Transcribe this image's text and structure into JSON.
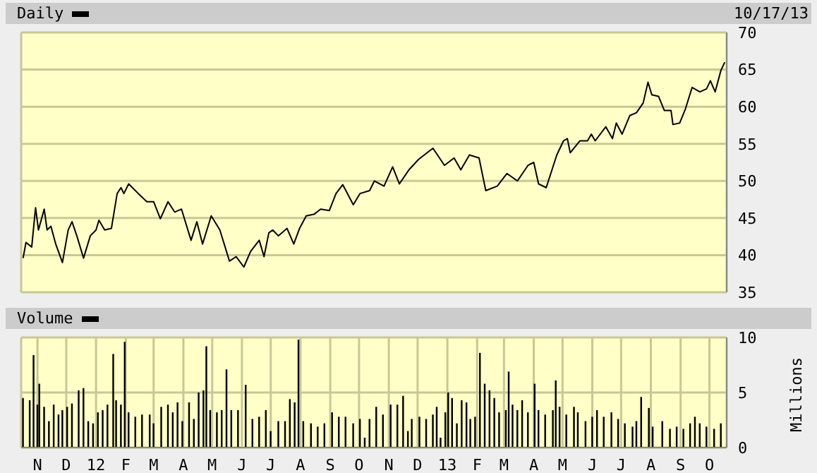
{
  "chart_data": [
    {
      "type": "line",
      "subtitle": "10/17/13",
      "legend": "top left",
      "grid": true,
      "tick_labels": "y",
      "xlim": [
        "2011-10-15",
        "2013-10-19"
      ],
      "xticks": [
        {
          "value": "2011-11-01",
          "label": null
        },
        {
          "value": "2011-12-01",
          "label": null
        },
        {
          "value": "2012-01-01",
          "label": null
        },
        {
          "value": "2012-02-01",
          "label": null
        },
        {
          "value": "2012-03-01",
          "label": null
        },
        {
          "value": "2012-04-01",
          "label": null
        },
        {
          "value": "2012-05-01",
          "label": null
        },
        {
          "value": "2012-06-01",
          "label": null
        },
        {
          "value": "2012-07-01",
          "label": null
        },
        {
          "value": "2012-08-01",
          "label": null
        },
        {
          "value": "2012-09-01",
          "label": null
        },
        {
          "value": "2012-10-01",
          "label": null
        },
        {
          "value": "2012-11-01",
          "label": null
        },
        {
          "value": "2012-12-01",
          "label": null
        },
        {
          "value": "2013-01-01",
          "label": null
        },
        {
          "value": "2013-02-01",
          "label": null
        },
        {
          "value": "2013-03-01",
          "label": null
        },
        {
          "value": "2013-04-01",
          "label": null
        },
        {
          "value": "2013-05-01",
          "label": null
        },
        {
          "value": "2013-06-01",
          "label": null
        },
        {
          "value": "2013-07-01",
          "label": null
        },
        {
          "value": "2013-08-01",
          "label": null
        },
        {
          "value": "2013-09-01",
          "label": null
        },
        {
          "value": "2013-10-01",
          "label": null
        }
      ],
      "ylim": [
        35,
        70
      ],
      "yticks": [
        35,
        40,
        45,
        50,
        55,
        60,
        65,
        70
      ],
      "x": [
        "2011-10-17",
        "2011-10-20",
        "2011-10-26",
        "2011-10-30",
        "2011-11-02",
        "2011-11-08",
        "2011-11-11",
        "2011-11-15",
        "2011-11-20",
        "2011-11-27",
        "2011-12-03",
        "2011-12-07",
        "2011-12-12",
        "2011-12-19",
        "2011-12-26",
        "2012-01-01",
        "2012-01-04",
        "2012-01-10",
        "2012-01-17",
        "2012-01-23",
        "2012-01-27",
        "2012-01-30",
        "2012-02-04",
        "2012-02-14",
        "2012-02-23",
        "2012-03-01",
        "2012-03-08",
        "2012-03-16",
        "2012-03-23",
        "2012-03-30",
        "2012-04-09",
        "2012-04-15",
        "2012-04-21",
        "2012-04-30",
        "2012-05-09",
        "2012-05-19",
        "2012-05-26",
        "2012-06-03",
        "2012-06-10",
        "2012-06-19",
        "2012-06-24",
        "2012-06-29",
        "2012-07-03",
        "2012-07-09",
        "2012-07-18",
        "2012-07-25",
        "2012-07-31",
        "2012-08-07",
        "2012-08-15",
        "2012-08-22",
        "2012-08-31",
        "2012-09-07",
        "2012-09-14",
        "2012-09-25",
        "2012-10-02",
        "2012-10-12",
        "2012-10-17",
        "2012-10-27",
        "2012-11-05",
        "2012-11-12",
        "2012-11-22",
        "2012-12-02",
        "2012-12-11",
        "2012-12-17",
        "2012-12-29",
        "2013-01-08",
        "2013-01-15",
        "2013-01-24",
        "2013-02-03",
        "2013-02-10",
        "2013-02-22",
        "2013-03-04",
        "2013-03-15",
        "2013-03-26",
        "2013-04-01",
        "2013-04-06",
        "2013-04-14",
        "2013-04-25",
        "2013-05-02",
        "2013-05-06",
        "2013-05-09",
        "2013-05-19",
        "2013-05-27",
        "2013-05-31",
        "2013-06-04",
        "2013-06-15",
        "2013-06-22",
        "2013-06-26",
        "2013-07-02",
        "2013-07-10",
        "2013-07-17",
        "2013-07-24",
        "2013-07-29",
        "2013-08-02",
        "2013-08-09",
        "2013-08-15",
        "2013-08-22",
        "2013-08-24",
        "2013-08-31",
        "2013-09-06",
        "2013-09-13",
        "2013-09-21",
        "2013-09-28",
        "2013-10-02",
        "2013-10-07",
        "2013-10-13",
        "2013-10-17"
      ],
      "series": [
        {
          "name": "Daily",
          "color": "#000000",
          "values": [
            39.6,
            41.7,
            41.1,
            46.4,
            43.4,
            46.2,
            43.4,
            43.9,
            41.5,
            39.0,
            43.4,
            44.5,
            42.6,
            39.6,
            42.6,
            43.4,
            44.7,
            43.4,
            43.6,
            48.3,
            49.1,
            48.3,
            49.6,
            48.3,
            47.2,
            47.2,
            44.9,
            47.2,
            45.8,
            46.2,
            42.0,
            44.5,
            41.5,
            45.3,
            43.4,
            39.2,
            39.8,
            38.4,
            40.5,
            42.0,
            39.8,
            43.0,
            43.4,
            42.6,
            43.6,
            41.5,
            43.6,
            45.3,
            45.5,
            46.2,
            46.0,
            48.3,
            49.5,
            46.8,
            48.3,
            48.7,
            50.0,
            49.3,
            51.9,
            49.6,
            51.5,
            52.9,
            53.8,
            54.4,
            52.1,
            53.1,
            51.5,
            53.5,
            53.1,
            48.7,
            49.3,
            51.0,
            50.0,
            52.1,
            52.5,
            49.6,
            49.1,
            53.5,
            55.4,
            55.7,
            53.8,
            55.4,
            55.4,
            56.3,
            55.4,
            57.3,
            55.7,
            57.8,
            56.3,
            58.8,
            59.2,
            60.5,
            63.3,
            61.6,
            61.4,
            59.5,
            59.5,
            57.6,
            57.8,
            59.7,
            62.6,
            62.0,
            62.4,
            63.5,
            62.0,
            64.9,
            66.0
          ]
        }
      ]
    },
    {
      "type": "bar",
      "ylabel": "Millions",
      "legend": "top left",
      "grid": true,
      "xlim": [
        "2011-10-15",
        "2013-10-19"
      ],
      "xticks": [
        {
          "value": "2011-11-01",
          "label": "N"
        },
        {
          "value": "2011-12-01",
          "label": "D"
        },
        {
          "value": "2012-01-01",
          "label": "12"
        },
        {
          "value": "2012-02-01",
          "label": "F"
        },
        {
          "value": "2012-03-01",
          "label": "M"
        },
        {
          "value": "2012-04-01",
          "label": "A"
        },
        {
          "value": "2012-05-01",
          "label": "M"
        },
        {
          "value": "2012-06-01",
          "label": "J"
        },
        {
          "value": "2012-07-01",
          "label": "J"
        },
        {
          "value": "2012-08-01",
          "label": "A"
        },
        {
          "value": "2012-09-01",
          "label": "S"
        },
        {
          "value": "2012-10-01",
          "label": "O"
        },
        {
          "value": "2012-11-01",
          "label": "N"
        },
        {
          "value": "2012-12-01",
          "label": "D"
        },
        {
          "value": "2013-01-01",
          "label": "13"
        },
        {
          "value": "2013-02-01",
          "label": "F"
        },
        {
          "value": "2013-03-01",
          "label": "M"
        },
        {
          "value": "2013-04-01",
          "label": "A"
        },
        {
          "value": "2013-05-01",
          "label": "M"
        },
        {
          "value": "2013-06-01",
          "label": "J"
        },
        {
          "value": "2013-07-01",
          "label": "J"
        },
        {
          "value": "2013-08-01",
          "label": "A"
        },
        {
          "value": "2013-09-01",
          "label": "S"
        },
        {
          "value": "2013-10-01",
          "label": "O"
        }
      ],
      "ylim": [
        0,
        10
      ],
      "yticks": [
        0,
        5,
        10
      ],
      "x": [
        "2011-10-17",
        "2011-10-24",
        "2011-10-28",
        "2011-11-01",
        "2011-11-03",
        "2011-11-08",
        "2011-11-13",
        "2011-11-18",
        "2011-11-23",
        "2011-11-27",
        "2011-12-02",
        "2011-12-07",
        "2011-12-14",
        "2011-12-19",
        "2011-12-24",
        "2011-12-29",
        "2012-01-03",
        "2012-01-08",
        "2012-01-13",
        "2012-01-19",
        "2012-01-22",
        "2012-01-27",
        "2012-01-31",
        "2012-02-04",
        "2012-02-11",
        "2012-02-18",
        "2012-02-26",
        "2012-03-01",
        "2012-03-09",
        "2012-03-16",
        "2012-03-21",
        "2012-03-26",
        "2012-03-31",
        "2012-04-07",
        "2012-04-12",
        "2012-04-17",
        "2012-04-22",
        "2012-04-25",
        "2012-04-29",
        "2012-05-06",
        "2012-05-11",
        "2012-05-16",
        "2012-05-21",
        "2012-05-28",
        "2012-06-05",
        "2012-06-12",
        "2012-06-19",
        "2012-06-26",
        "2012-07-01",
        "2012-07-09",
        "2012-07-16",
        "2012-07-21",
        "2012-07-26",
        "2012-07-30",
        "2012-08-04",
        "2012-08-12",
        "2012-08-19",
        "2012-08-26",
        "2012-09-03",
        "2012-09-10",
        "2012-09-17",
        "2012-09-25",
        "2012-10-02",
        "2012-10-07",
        "2012-10-12",
        "2012-10-19",
        "2012-10-26",
        "2012-11-03",
        "2012-11-10",
        "2012-11-16",
        "2012-11-21",
        "2012-11-25",
        "2012-12-03",
        "2012-12-10",
        "2012-12-17",
        "2012-12-21",
        "2012-12-25",
        "2012-12-30",
        "2013-01-02",
        "2013-01-06",
        "2013-01-11",
        "2013-01-16",
        "2013-01-21",
        "2013-01-25",
        "2013-01-30",
        "2013-02-04",
        "2013-02-09",
        "2013-02-14",
        "2013-02-19",
        "2013-02-24",
        "2013-03-03",
        "2013-03-06",
        "2013-03-10",
        "2013-03-15",
        "2013-03-20",
        "2013-03-26",
        "2013-04-02",
        "2013-04-06",
        "2013-04-13",
        "2013-04-21",
        "2013-04-24",
        "2013-04-28",
        "2013-05-05",
        "2013-05-13",
        "2013-05-17",
        "2013-05-25",
        "2013-06-01",
        "2013-06-06",
        "2013-06-13",
        "2013-06-21",
        "2013-06-28",
        "2013-07-05",
        "2013-07-13",
        "2013-07-17",
        "2013-07-22",
        "2013-07-30",
        "2013-08-03",
        "2013-08-13",
        "2013-08-21",
        "2013-08-28",
        "2013-09-04",
        "2013-09-11",
        "2013-09-16",
        "2013-09-21",
        "2013-09-28",
        "2013-10-06",
        "2013-10-13"
      ],
      "series": [
        {
          "name": "Volume",
          "color": "#000000",
          "values": [
            4.5,
            4.3,
            8.4,
            3.9,
            5.8,
            3.7,
            2.4,
            3.9,
            3.0,
            3.4,
            3.7,
            4.0,
            5.2,
            5.4,
            2.4,
            2.2,
            3.2,
            3.4,
            3.9,
            8.5,
            4.3,
            3.9,
            9.6,
            3.2,
            2.8,
            3.0,
            3.0,
            2.2,
            3.7,
            3.9,
            3.2,
            4.1,
            2.4,
            4.1,
            2.6,
            5.0,
            5.2,
            9.2,
            3.4,
            3.2,
            3.4,
            7.1,
            3.4,
            3.4,
            5.7,
            2.6,
            2.8,
            3.4,
            1.5,
            2.4,
            2.4,
            4.4,
            4.1,
            9.8,
            2.4,
            2.2,
            1.9,
            2.2,
            3.2,
            2.8,
            2.8,
            2.2,
            2.6,
            0.9,
            2.6,
            3.7,
            3.0,
            3.9,
            3.9,
            4.7,
            1.5,
            2.6,
            2.8,
            2.6,
            3.0,
            3.7,
            0.9,
            3.2,
            5.0,
            4.5,
            2.2,
            4.3,
            4.1,
            2.6,
            2.8,
            8.6,
            5.8,
            5.2,
            4.5,
            3.2,
            3.4,
            6.9,
            3.9,
            3.4,
            4.3,
            3.2,
            5.8,
            3.4,
            3.0,
            3.4,
            6.1,
            3.7,
            3.0,
            3.7,
            3.2,
            2.4,
            2.8,
            3.4,
            2.8,
            3.2,
            2.6,
            2.2,
            1.9,
            2.4,
            4.6,
            3.6,
            1.9,
            2.4,
            1.7,
            1.9,
            1.7,
            2.2,
            2.8,
            2.2,
            1.9,
            1.7,
            2.2
          ]
        }
      ]
    }
  ]
}
